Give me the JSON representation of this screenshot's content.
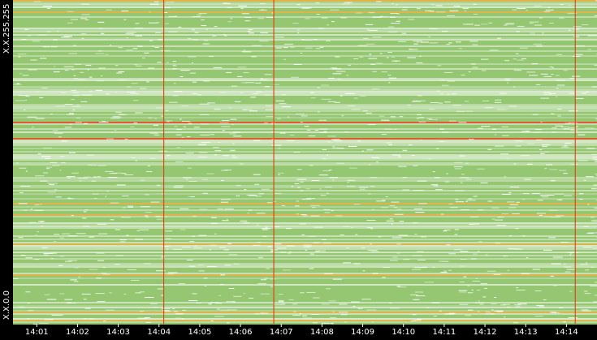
{
  "chart_data": {
    "type": "heatmap",
    "title": "",
    "xlabel": "",
    "ylabel": "",
    "x_ticks": [
      "14:01",
      "14:02",
      "14:03",
      "14:04",
      "14:05",
      "14:06",
      "14:07",
      "14:08",
      "14:09",
      "14:10",
      "14:11",
      "14:12",
      "14:13",
      "14:14"
    ],
    "x_range": [
      "14:00:25",
      "14:14:45"
    ],
    "y_ticks": [
      "X.X.255.255",
      "X.X.0.0"
    ],
    "y_axis": "address space, top = X.X.255.255, bottom = X.X.0.0",
    "vertical_events": [
      "14:04:07",
      "14:06:49",
      "14:14:13"
    ],
    "grid": false,
    "legend": "none",
    "colors": {
      "background": "#ffffff",
      "low": "#8fc46a",
      "medium": "#d9a020",
      "high": "#e23c10",
      "axis": "#000000",
      "tick_text": "#ffffff"
    }
  }
}
